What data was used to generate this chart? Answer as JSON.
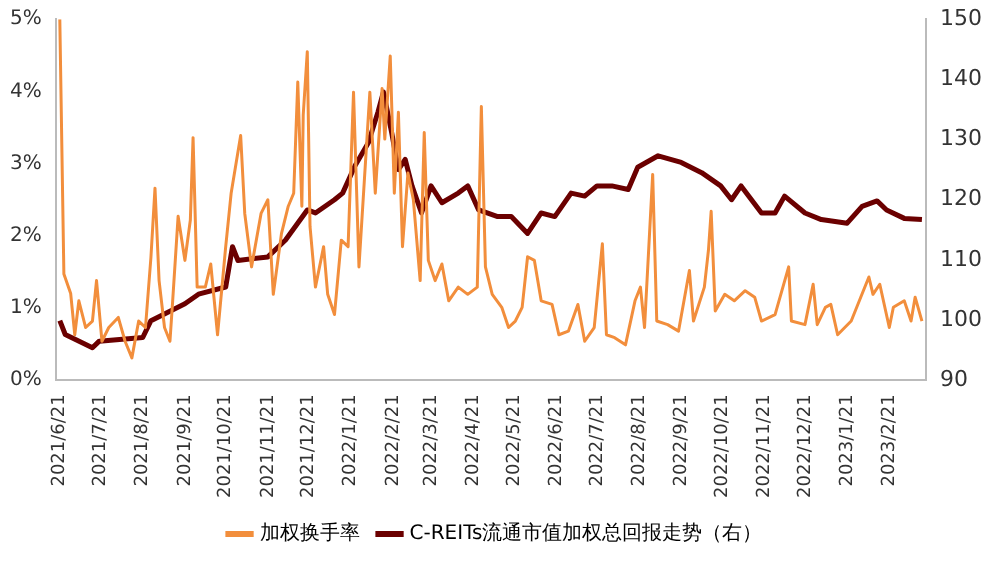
{
  "chart_data": {
    "type": "line",
    "legend": "bottom",
    "grid": false,
    "marker": "none",
    "xlim": [
      "2021-06-18",
      "2023-03-20"
    ],
    "xticks": [
      {
        "value": "2021-06-21",
        "label": "2021/6/21"
      },
      {
        "value": "2021-07-21",
        "label": "2021/7/21"
      },
      {
        "value": "2021-08-21",
        "label": "2021/8/21"
      },
      {
        "value": "2021-09-21",
        "label": "2021/9/21"
      },
      {
        "value": "2021-10-21",
        "label": "2021/10/21"
      },
      {
        "value": "2021-11-21",
        "label": "2021/11/21"
      },
      {
        "value": "2021-12-21",
        "label": "2021/12/21"
      },
      {
        "value": "2022-01-21",
        "label": "2022/1/21"
      },
      {
        "value": "2022-02-21",
        "label": "2022/2/21"
      },
      {
        "value": "2022-03-21",
        "label": "2022/3/21"
      },
      {
        "value": "2022-04-21",
        "label": "2022/4/21"
      },
      {
        "value": "2022-05-21",
        "label": "2022/5/21"
      },
      {
        "value": "2022-06-21",
        "label": "2022/6/21"
      },
      {
        "value": "2022-07-21",
        "label": "2022/7/21"
      },
      {
        "value": "2022-08-21",
        "label": "2022/8/21"
      },
      {
        "value": "2022-09-21",
        "label": "2022/9/21"
      },
      {
        "value": "2022-10-21",
        "label": "2022/10/21"
      },
      {
        "value": "2022-11-21",
        "label": "2022/11/21"
      },
      {
        "value": "2022-12-21",
        "label": "2022/12/21"
      },
      {
        "value": "2023-01-21",
        "label": "2023/1/21"
      },
      {
        "value": "2023-02-21",
        "label": "2023/2/21"
      }
    ],
    "ylim": [
      0,
      5
    ],
    "yticks": [
      {
        "value": 0,
        "label": "0%"
      },
      {
        "value": 1,
        "label": "1%"
      },
      {
        "value": 2,
        "label": "2%"
      },
      {
        "value": 3,
        "label": "3%"
      },
      {
        "value": 4,
        "label": "4%"
      },
      {
        "value": 5,
        "label": "5%"
      }
    ],
    "y2lim": [
      90,
      150
    ],
    "y2ticks": [
      90,
      100,
      110,
      120,
      130,
      140,
      150
    ],
    "series": [
      {
        "name": "加权换手率",
        "color": "#f28e3c",
        "x": [
          "2021-06-21",
          "2021-06-24",
          "2021-06-29",
          "2021-07-02",
          "2021-07-05",
          "2021-07-10",
          "2021-07-15",
          "2021-07-18",
          "2021-07-22",
          "2021-07-27",
          "2021-08-03",
          "2021-08-08",
          "2021-08-13",
          "2021-08-18",
          "2021-08-23",
          "2021-08-27",
          "2021-08-30",
          "2021-09-02",
          "2021-09-06",
          "2021-09-10",
          "2021-09-12",
          "2021-09-16",
          "2021-09-21",
          "2021-09-25",
          "2021-09-27",
          "2021-09-30",
          "2021-10-06",
          "2021-10-10",
          "2021-10-15",
          "2021-10-21",
          "2021-10-25",
          "2021-11-01",
          "2021-11-04",
          "2021-11-09",
          "2021-11-16",
          "2021-11-21",
          "2021-11-25",
          "2021-12-01",
          "2021-12-06",
          "2021-12-10",
          "2021-12-13",
          "2021-12-16",
          "2021-12-17",
          "2021-12-20",
          "2021-12-22",
          "2021-12-26",
          "2022-01-01",
          "2022-01-04",
          "2022-01-09",
          "2022-01-14",
          "2022-01-19",
          "2022-01-23",
          "2022-01-27",
          "2022-01-31",
          "2022-02-04",
          "2022-02-08",
          "2022-02-13",
          "2022-02-15",
          "2022-02-19",
          "2022-02-22",
          "2022-02-25",
          "2022-02-28",
          "2022-03-04",
          "2022-03-08",
          "2022-03-13",
          "2022-03-16",
          "2022-03-19",
          "2022-03-24",
          "2022-03-29",
          "2022-04-03",
          "2022-04-10",
          "2022-04-17",
          "2022-04-24",
          "2022-04-27",
          "2022-04-30",
          "2022-05-05",
          "2022-05-12",
          "2022-05-17",
          "2022-05-22",
          "2022-05-27",
          "2022-05-31",
          "2022-06-05",
          "2022-06-10",
          "2022-06-18",
          "2022-06-23",
          "2022-06-30",
          "2022-07-07",
          "2022-07-12",
          "2022-07-19",
          "2022-07-25",
          "2022-07-28",
          "2022-08-03",
          "2022-08-11",
          "2022-08-18",
          "2022-08-22",
          "2022-08-25",
          "2022-08-31",
          "2022-09-03",
          "2022-09-11",
          "2022-09-19",
          "2022-09-27",
          "2022-09-30",
          "2022-10-08",
          "2022-10-11",
          "2022-10-13",
          "2022-10-16",
          "2022-10-23",
          "2022-10-30",
          "2022-11-07",
          "2022-11-14",
          "2022-11-19",
          "2022-11-29",
          "2022-12-09",
          "2022-12-11",
          "2022-12-21",
          "2022-12-27",
          "2022-12-30",
          "2023-01-05",
          "2023-01-09",
          "2023-01-14",
          "2023-01-24",
          "2023-01-31",
          "2023-02-06",
          "2023-02-09",
          "2023-02-14",
          "2023-02-21",
          "2023-02-24",
          "2023-03-04",
          "2023-03-09",
          "2023-03-12",
          "2023-03-17"
        ],
        "values": [
          5.0,
          1.47,
          1.2,
          0.63,
          1.1,
          0.73,
          0.82,
          1.38,
          0.54,
          0.73,
          0.87,
          0.54,
          0.31,
          0.82,
          0.73,
          1.7,
          2.66,
          1.38,
          0.73,
          0.54,
          1.1,
          2.27,
          1.66,
          2.22,
          3.36,
          1.29,
          1.29,
          1.61,
          0.63,
          1.85,
          2.59,
          3.39,
          2.31,
          1.57,
          2.31,
          2.5,
          1.19,
          2.03,
          2.41,
          2.59,
          4.13,
          2.41,
          3.67,
          4.55,
          2.13,
          1.29,
          1.85,
          1.19,
          0.91,
          1.94,
          1.85,
          3.99,
          1.57,
          2.78,
          3.99,
          2.59,
          4.04,
          3.34,
          4.49,
          2.59,
          3.71,
          1.85,
          2.87,
          2.5,
          1.38,
          3.43,
          1.66,
          1.38,
          1.61,
          1.1,
          1.29,
          1.19,
          1.29,
          3.79,
          1.57,
          1.19,
          1.01,
          0.73,
          0.82,
          1.01,
          1.71,
          1.66,
          1.1,
          1.05,
          0.63,
          0.68,
          1.05,
          0.54,
          0.73,
          1.89,
          0.63,
          0.59,
          0.49,
          1.1,
          1.29,
          0.73,
          2.85,
          0.82,
          0.77,
          0.68,
          1.52,
          0.82,
          1.29,
          1.8,
          2.34,
          0.96,
          1.19,
          1.1,
          1.24,
          1.15,
          0.82,
          0.91,
          1.57,
          0.82,
          0.77,
          1.33,
          0.77,
          1.01,
          1.05,
          0.63,
          0.82,
          1.15,
          1.43,
          1.19,
          1.33,
          0.73,
          1.01,
          1.1,
          0.82,
          1.15,
          0.82
        ]
      },
      {
        "name": "C-REITs流通市值加权总回报走势（右）",
        "color": "#6b0000",
        "axis": "y2",
        "x": [
          "2021-06-21",
          "2021-06-25",
          "2021-07-15",
          "2021-07-20",
          "2021-08-21",
          "2021-08-27",
          "2021-09-21",
          "2021-10-01",
          "2021-10-21",
          "2021-10-26",
          "2021-10-30",
          "2021-11-21",
          "2021-12-04",
          "2021-12-20",
          "2021-12-26",
          "2022-01-09",
          "2022-01-15",
          "2022-01-24",
          "2022-02-03",
          "2022-02-10",
          "2022-02-14",
          "2022-02-20",
          "2022-02-25",
          "2022-03-02",
          "2022-03-07",
          "2022-03-14",
          "2022-03-21",
          "2022-03-29",
          "2022-04-10",
          "2022-04-17",
          "2022-04-25",
          "2022-05-09",
          "2022-05-19",
          "2022-05-31",
          "2022-06-10",
          "2022-06-20",
          "2022-07-02",
          "2022-07-12",
          "2022-07-21",
          "2022-08-01",
          "2022-08-13",
          "2022-08-20",
          "2022-09-04",
          "2022-09-21",
          "2022-10-06",
          "2022-10-20",
          "2022-10-28",
          "2022-11-04",
          "2022-11-19",
          "2022-11-29",
          "2022-12-06",
          "2022-12-21",
          "2023-01-02",
          "2023-01-21",
          "2023-02-01",
          "2023-02-12",
          "2023-02-19",
          "2023-03-04",
          "2023-03-17"
        ],
        "values": [
          99.9,
          97.6,
          95.4,
          96.5,
          97.1,
          99.9,
          102.7,
          104.3,
          105.5,
          112.2,
          109.9,
          110.5,
          113.3,
          118.3,
          117.8,
          120,
          121.1,
          125.6,
          129.5,
          134.6,
          137.9,
          131.2,
          125,
          126.7,
          122.3,
          117.8,
          122.3,
          119.5,
          121.1,
          122.3,
          118.3,
          117.2,
          117.2,
          114.4,
          117.8,
          117.2,
          121.1,
          120.6,
          122.3,
          122.3,
          121.7,
          125.4,
          127.3,
          126.2,
          124.5,
          122.3,
          120,
          122.3,
          117.8,
          117.8,
          120.6,
          117.8,
          116.7,
          116.1,
          118.9,
          119.8,
          118.3,
          116.9,
          116.7
        ]
      }
    ]
  }
}
